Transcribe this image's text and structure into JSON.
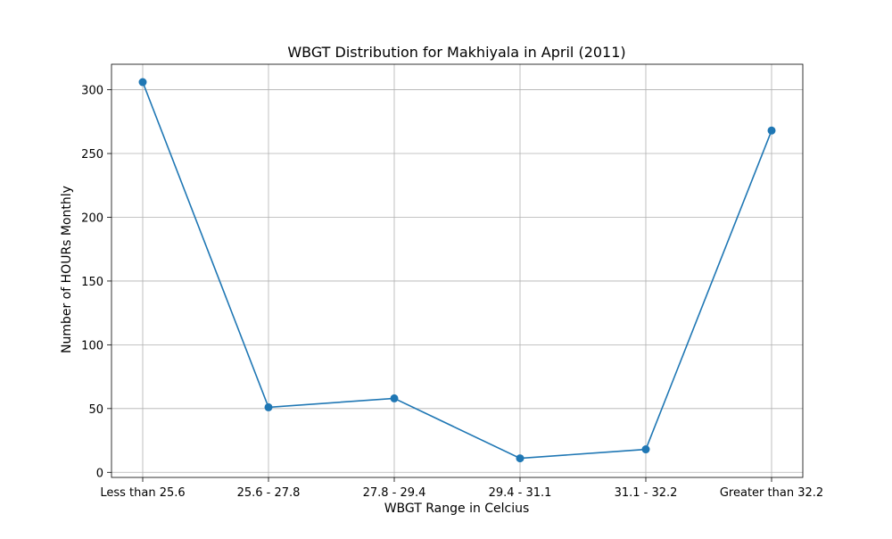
{
  "chart_data": {
    "type": "line",
    "title": "WBGT Distribution for Makhiyala in April (2011)",
    "xlabel": "WBGT Range in Celcius",
    "ylabel": "Number of HOURs Monthly",
    "categories": [
      "Less than 25.6",
      "25.6 - 27.8",
      "27.8 - 29.4",
      "29.4 - 31.1",
      "31.1 - 32.2",
      "Greater than 32.2"
    ],
    "series": [
      {
        "values": [
          306,
          51,
          58,
          11,
          18,
          268
        ]
      }
    ],
    "ylim": [
      -4,
      320
    ],
    "yticks": [
      0,
      50,
      100,
      150,
      200,
      250,
      300
    ],
    "grid": true,
    "line_color": "#1f77b4",
    "marker": "circle"
  }
}
